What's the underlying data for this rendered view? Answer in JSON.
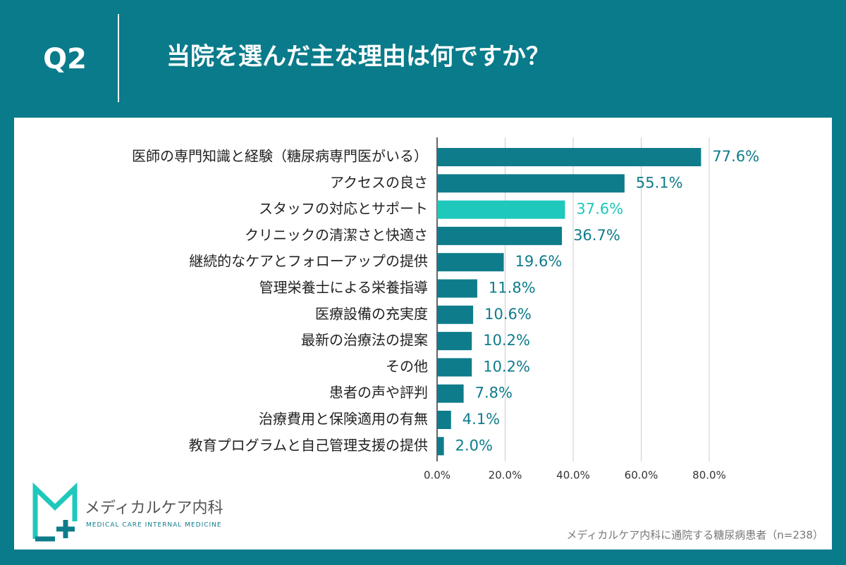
{
  "chart_data": {
    "type": "bar",
    "orientation": "horizontal",
    "question_number": "Q2",
    "title": "当院を選んだ主な理由は何ですか？",
    "categories": [
      "医師の専門知識と経験（糖尿病専門医がいる）",
      "アクセスの良さ",
      "スタッフの対応とサポート",
      "クリニックの清潔さと快適さ",
      "継続的なケアとフォローアップの提供",
      "管理栄養士による栄養指導",
      "医療設備の充実度",
      "最新の治療法の提案",
      "その他",
      "患者の声や評判",
      "治療費用と保険適用の有無",
      "教育プログラムと自己管理支援の提供"
    ],
    "values": [
      77.6,
      55.1,
      37.6,
      36.7,
      19.6,
      11.8,
      10.6,
      10.2,
      10.2,
      7.8,
      4.1,
      2.0
    ],
    "value_labels": [
      "77.6%",
      "55.1%",
      "37.6%",
      "36.7%",
      "19.6%",
      "11.8%",
      "10.6%",
      "10.2%",
      "10.2%",
      "7.8%",
      "4.1%",
      "2.0%"
    ],
    "colors": [
      "#0e7c8b",
      "#0e7c8b",
      "#1ec8bb",
      "#0e7c8b",
      "#0e7c8b",
      "#0e7c8b",
      "#0e7c8b",
      "#0e7c8b",
      "#0e7c8b",
      "#0e7c8b",
      "#0e7c8b",
      "#0e7c8b"
    ],
    "xlim": [
      0,
      80
    ],
    "xticks": [
      {
        "value": 0,
        "label": "0.0%"
      },
      {
        "value": 20,
        "label": "20.0%"
      },
      {
        "value": 40,
        "label": "40.0%"
      },
      {
        "value": 60,
        "label": "60.0%"
      },
      {
        "value": 80,
        "label": "80.0%"
      }
    ],
    "grid": true,
    "brand": {
      "name": "メディカルケア内科",
      "subtitle": "MEDICAL CARE INTERNAL MEDICINE"
    },
    "note": "メディカルケア内科に通院する糖尿病患者（n=238）"
  }
}
